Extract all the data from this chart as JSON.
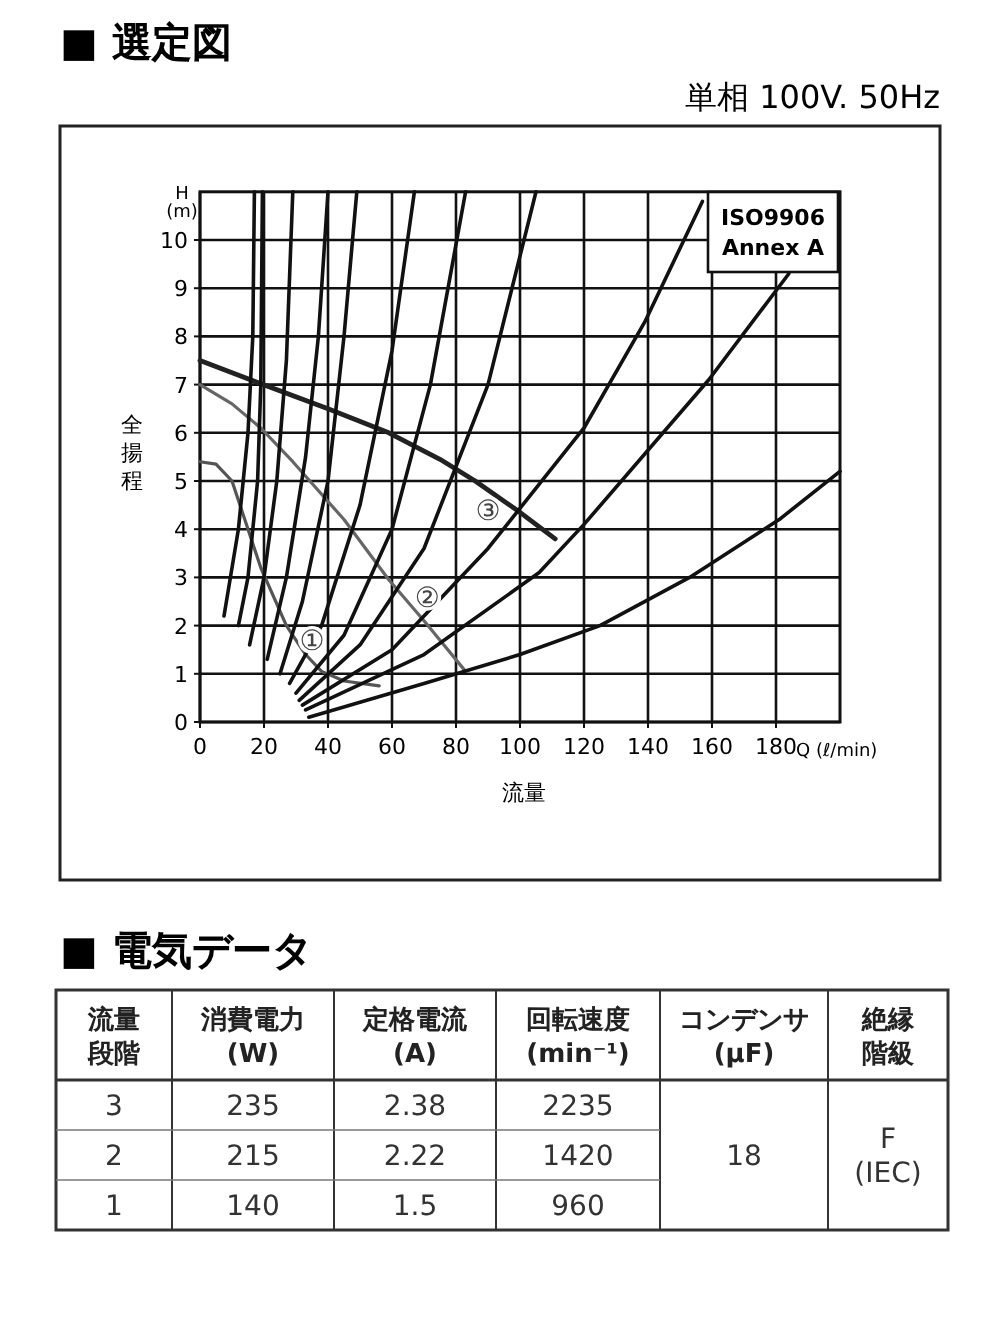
{
  "chart_data": [
    {
      "type": "line",
      "title": "■ 選定図",
      "subtitle": "単相 100V. 50Hz",
      "xlabel": "流量",
      "ylabel": "全揚程",
      "annotations": [
        "H\n(m)",
        "Q (ℓ/min)",
        "ISO9906\nAnnex A",
        {
          "text": "③",
          "x": 90,
          "y": 4.4
        },
        {
          "text": "②",
          "x": 71,
          "y": 2.6
        },
        {
          "text": "①",
          "x": 35,
          "y": 1.7
        }
      ],
      "xlim": [
        0,
        200
      ],
      "ylim": [
        0,
        11
      ],
      "xticks": [
        0,
        20,
        40,
        60,
        80,
        100,
        120,
        140,
        160,
        180
      ],
      "yticks": [
        0,
        1,
        2,
        3,
        4,
        5,
        6,
        7,
        8,
        9,
        10
      ],
      "grid": true,
      "series": [
        {
          "color": "#222222",
          "x": [
            0,
            17,
            40,
            59,
            75,
            86,
            100,
            111
          ],
          "values": [
            7.5,
            7.07,
            6.5,
            6.0,
            5.45,
            5.0,
            4.35,
            3.8
          ]
        },
        {
          "color": "#666666",
          "x": [
            0,
            10,
            19,
            29,
            45,
            59,
            70,
            83
          ],
          "values": [
            7.0,
            6.6,
            6.1,
            5.4,
            4.2,
            2.95,
            2.1,
            1.05
          ]
        },
        {
          "color": "#555555",
          "x": [
            0,
            5,
            10,
            14,
            19,
            27,
            33,
            38,
            45,
            56
          ],
          "values": [
            5.4,
            5.35,
            5.0,
            4.2,
            3.2,
            2.0,
            1.4,
            1.05,
            0.85,
            0.75
          ]
        },
        {
          "color": "#111111",
          "x": [
            7.5,
            12,
            15,
            16.5,
            17
          ],
          "values": [
            2.2,
            4,
            6,
            8,
            11
          ]
        },
        {
          "color": "#111111",
          "x": [
            12,
            15,
            18,
            19,
            19.5
          ],
          "values": [
            2.0,
            3,
            5,
            7,
            11
          ]
        },
        {
          "color": "#111111",
          "x": [
            15.5,
            20,
            24,
            27,
            29
          ],
          "values": [
            1.6,
            3,
            5,
            7.5,
            11
          ]
        },
        {
          "color": "#111111",
          "x": [
            21,
            27,
            33,
            37,
            40
          ],
          "values": [
            1.3,
            3,
            5.5,
            8,
            11
          ]
        },
        {
          "color": "#111111",
          "x": [
            25,
            32,
            40,
            45,
            49
          ],
          "values": [
            1.0,
            2.5,
            5,
            8,
            11
          ]
        },
        {
          "color": "#111111",
          "x": [
            28,
            38,
            50,
            60,
            67
          ],
          "values": [
            0.8,
            2,
            4.5,
            7.7,
            11
          ]
        },
        {
          "color": "#111111",
          "x": [
            30,
            45,
            60,
            72,
            83
          ],
          "values": [
            0.6,
            1.8,
            4,
            7,
            11
          ]
        },
        {
          "color": "#111111",
          "x": [
            31,
            50,
            70,
            90,
            105
          ],
          "values": [
            0.45,
            1.6,
            3.6,
            7,
            11
          ]
        },
        {
          "color": "#111111",
          "x": [
            32,
            60,
            90,
            120,
            139,
            157
          ],
          "values": [
            0.35,
            1.5,
            3.6,
            6.1,
            8.3,
            10.8
          ]
        },
        {
          "color": "#111111",
          "x": [
            33,
            70,
            106,
            120,
            159,
            184
          ],
          "values": [
            0.25,
            1.4,
            3.1,
            4.1,
            7.1,
            9.3
          ]
        },
        {
          "color": "#111111",
          "x": [
            34,
            70,
            100,
            125,
            153,
            181,
            200
          ],
          "values": [
            0.1,
            0.8,
            1.4,
            2.0,
            3.0,
            4.2,
            5.2
          ]
        }
      ]
    },
    {
      "type": "other",
      "title": "■ 電気データ",
      "annotations": [
        "流量段階",
        "消費電力\n(W)",
        "定格電流\n(A)",
        "回転速度\n(min⁻¹)",
        "コンデンサ\n(μF)",
        "絶縁階級",
        "3",
        "235",
        "2.38",
        "2235",
        "2",
        "215",
        "2.22",
        "1420",
        "1",
        "140",
        "1.5",
        "960",
        "18",
        "F\n(IEC)"
      ]
    }
  ]
}
